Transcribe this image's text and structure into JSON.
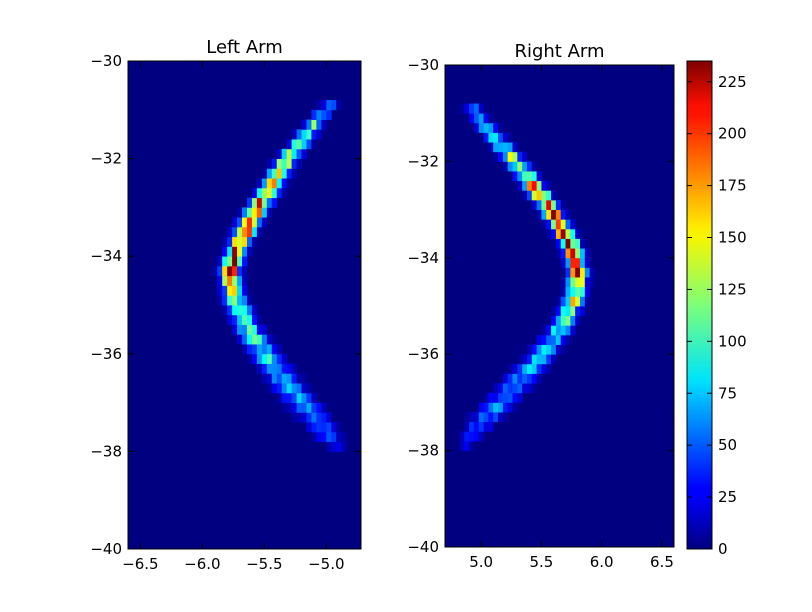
{
  "chart_data": [
    {
      "type": "heatmap",
      "title": "Left Arm",
      "xlabel": "",
      "ylabel": "",
      "xlim": [
        -6.6,
        -4.72
      ],
      "ylim": [
        -40,
        -30
      ],
      "x_ticks": [
        -6.5,
        -6.0,
        -5.5,
        -5.0
      ],
      "x_tick_labels": [
        "−6.5",
        "−6.0",
        "−5.5",
        "−5.0"
      ],
      "y_ticks": [
        -30,
        -32,
        -34,
        -36,
        -38,
        -40
      ],
      "y_tick_labels": [
        "−30",
        "−32",
        "−34",
        "−36",
        "−38",
        "−40"
      ],
      "grid": false,
      "bin_size": {
        "x": 0.04,
        "y": 0.2
      },
      "background_count": 0,
      "ridge": [
        {
          "x": -4.95,
          "y": -30.8,
          "count": 50,
          "width": 0.08
        },
        {
          "x": -5.1,
          "y": -31.3,
          "count": 90,
          "width": 0.1
        },
        {
          "x": -5.25,
          "y": -31.8,
          "count": 120,
          "width": 0.11
        },
        {
          "x": -5.38,
          "y": -32.3,
          "count": 160,
          "width": 0.11
        },
        {
          "x": -5.5,
          "y": -32.8,
          "count": 180,
          "width": 0.11
        },
        {
          "x": -5.62,
          "y": -33.3,
          "count": 200,
          "width": 0.11
        },
        {
          "x": -5.72,
          "y": -33.8,
          "count": 225,
          "width": 0.1
        },
        {
          "x": -5.78,
          "y": -34.3,
          "count": 210,
          "width": 0.1
        },
        {
          "x": -5.75,
          "y": -34.8,
          "count": 140,
          "width": 0.11
        },
        {
          "x": -5.65,
          "y": -35.4,
          "count": 100,
          "width": 0.13
        },
        {
          "x": -5.5,
          "y": -36.0,
          "count": 80,
          "width": 0.15
        },
        {
          "x": -5.33,
          "y": -36.6,
          "count": 65,
          "width": 0.17
        },
        {
          "x": -5.13,
          "y": -37.2,
          "count": 55,
          "width": 0.17
        },
        {
          "x": -4.98,
          "y": -37.7,
          "count": 40,
          "width": 0.14
        },
        {
          "x": -4.9,
          "y": -37.95,
          "count": 20,
          "width": 0.08
        }
      ]
    },
    {
      "type": "heatmap",
      "title": "Right Arm",
      "xlabel": "",
      "ylabel": "",
      "xlim": [
        4.7,
        6.6
      ],
      "ylim": [
        -40,
        -30
      ],
      "x_ticks": [
        5.0,
        5.5,
        6.0,
        6.5
      ],
      "x_tick_labels": [
        "5.0",
        "5.5",
        "6.0",
        "6.5"
      ],
      "y_ticks": [
        -30,
        -32,
        -34,
        -36,
        -38,
        -40
      ],
      "y_tick_labels": [
        "−30",
        "−32",
        "−34",
        "−36",
        "−38",
        "−40"
      ],
      "grid": false,
      "bin_size": {
        "x": 0.04,
        "y": 0.2
      },
      "background_count": 0,
      "ridge": [
        {
          "x": 4.9,
          "y": -30.8,
          "count": 50,
          "width": 0.08
        },
        {
          "x": 5.05,
          "y": -31.3,
          "count": 90,
          "width": 0.1
        },
        {
          "x": 5.22,
          "y": -31.8,
          "count": 120,
          "width": 0.11
        },
        {
          "x": 5.38,
          "y": -32.3,
          "count": 150,
          "width": 0.11
        },
        {
          "x": 5.52,
          "y": -32.8,
          "count": 175,
          "width": 0.11
        },
        {
          "x": 5.65,
          "y": -33.3,
          "count": 215,
          "width": 0.1
        },
        {
          "x": 5.75,
          "y": -33.8,
          "count": 230,
          "width": 0.1
        },
        {
          "x": 5.8,
          "y": -34.3,
          "count": 190,
          "width": 0.1
        },
        {
          "x": 5.78,
          "y": -34.8,
          "count": 130,
          "width": 0.11
        },
        {
          "x": 5.68,
          "y": -35.4,
          "count": 100,
          "width": 0.12
        },
        {
          "x": 5.5,
          "y": -36.0,
          "count": 70,
          "width": 0.15
        },
        {
          "x": 5.3,
          "y": -36.6,
          "count": 60,
          "width": 0.17
        },
        {
          "x": 5.08,
          "y": -37.2,
          "count": 55,
          "width": 0.17
        },
        {
          "x": 4.92,
          "y": -37.7,
          "count": 40,
          "width": 0.13
        },
        {
          "x": 4.85,
          "y": -37.95,
          "count": 20,
          "width": 0.07
        }
      ]
    }
  ],
  "colorbar": {
    "colormap": "jet",
    "range": [
      0,
      235
    ],
    "ticks": [
      0,
      25,
      50,
      75,
      100,
      125,
      150,
      175,
      200,
      225
    ],
    "tick_labels": [
      "0",
      "25",
      "50",
      "75",
      "100",
      "125",
      "150",
      "175",
      "200",
      "225"
    ]
  }
}
